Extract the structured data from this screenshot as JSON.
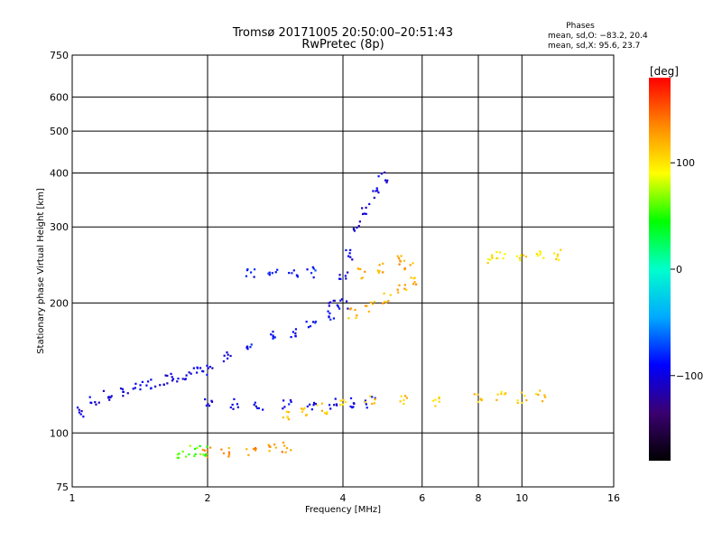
{
  "chart_data": {
    "type": "scatter",
    "title": "Tromsø 20171005 20:50:00–20:51:43",
    "subtitle": "RwPretec (8p)",
    "xlabel": "Frequency [MHz]",
    "ylabel": "Stationary phase Virtual Height [km]",
    "xscale": "log2",
    "yscale": "log",
    "xlim": [
      1,
      16
    ],
    "ylim": [
      75,
      750
    ],
    "x_ticks": [
      1,
      2,
      4,
      6,
      8,
      10,
      16
    ],
    "y_ticks": [
      75,
      100,
      200,
      300,
      400,
      500,
      600,
      750
    ],
    "grid": true,
    "stats": {
      "heading": "Phases",
      "line1": "mean, sd,O: −83.2, 20.4",
      "line2": "mean, sd,X:  95.6, 23.7"
    },
    "colorbar": {
      "unit": "[deg]",
      "range": [
        -180,
        180
      ],
      "ticks": [
        100,
        0,
        -100
      ],
      "tick_labels": [
        "100",
        "0",
        "−100"
      ],
      "colors": [
        "#000000",
        "#3a0070",
        "#0000ff",
        "#00aaff",
        "#00ffcc",
        "#00ff00",
        "#ffff00",
        "#ff8800",
        "#ff0000"
      ]
    },
    "traces": [
      {
        "polarization": "O",
        "phase_deg": -100,
        "points": [
          [
            1.05,
            112
          ],
          [
            1.12,
            118
          ],
          [
            1.2,
            122
          ],
          [
            1.3,
            125
          ],
          [
            1.4,
            128
          ],
          [
            1.5,
            130
          ],
          [
            1.6,
            133
          ],
          [
            1.7,
            135
          ],
          [
            1.8,
            137
          ],
          [
            1.9,
            138
          ],
          [
            2.0,
            140
          ]
        ]
      },
      {
        "polarization": "O",
        "phase_deg": -95,
        "points": [
          [
            2.0,
            118
          ],
          [
            2.3,
            117
          ],
          [
            2.6,
            116
          ],
          [
            3.0,
            116
          ],
          [
            3.4,
            116
          ],
          [
            3.8,
            117
          ],
          [
            4.2,
            117
          ],
          [
            4.6,
            118
          ]
        ]
      },
      {
        "polarization": "O",
        "phase_deg": -90,
        "points": [
          [
            2.2,
            150
          ],
          [
            2.5,
            160
          ],
          [
            2.8,
            168
          ],
          [
            3.1,
            172
          ],
          [
            3.4,
            178
          ],
          [
            3.8,
            186
          ],
          [
            4.0,
            200
          ]
        ]
      },
      {
        "polarization": "O",
        "phase_deg": -100,
        "points": [
          [
            3.8,
            200
          ],
          [
            4.0,
            230
          ],
          [
            4.1,
            260
          ],
          [
            4.3,
            300
          ],
          [
            4.5,
            330
          ],
          [
            4.7,
            360
          ],
          [
            4.9,
            390
          ]
        ]
      },
      {
        "polarization": "O",
        "phase_deg": -85,
        "points": [
          [
            2.5,
            235
          ],
          [
            2.8,
            238
          ],
          [
            3.1,
            236
          ],
          [
            3.4,
            236
          ]
        ]
      },
      {
        "polarization": "X",
        "phase_deg": 110,
        "points": [
          [
            3.0,
            110
          ],
          [
            3.3,
            112
          ],
          [
            3.6,
            114
          ],
          [
            4.0,
            118
          ],
          [
            4.6,
            120
          ],
          [
            5.5,
            119
          ],
          [
            6.5,
            118
          ],
          [
            8.0,
            120
          ],
          [
            9.0,
            121
          ],
          [
            10.0,
            121
          ],
          [
            11.0,
            122
          ]
        ]
      },
      {
        "polarization": "X",
        "phase_deg": 120,
        "points": [
          [
            4.2,
            190
          ],
          [
            4.6,
            196
          ],
          [
            5.0,
            205
          ],
          [
            5.4,
            215
          ],
          [
            5.7,
            225
          ]
        ]
      },
      {
        "polarization": "X",
        "phase_deg": 125,
        "points": [
          [
            4.4,
            235
          ],
          [
            4.9,
            240
          ],
          [
            5.3,
            250
          ],
          [
            5.6,
            245
          ]
        ]
      },
      {
        "polarization": "X",
        "phase_deg": 130,
        "points": [
          [
            2.0,
            90
          ],
          [
            2.2,
            90
          ],
          [
            2.5,
            91
          ],
          [
            2.8,
            92
          ],
          [
            3.0,
            93
          ]
        ]
      },
      {
        "polarization": "X",
        "phase_deg": 60,
        "points": [
          [
            1.75,
            90
          ],
          [
            1.85,
            91
          ],
          [
            1.95,
            91
          ]
        ]
      },
      {
        "polarization": "X",
        "phase_deg": 100,
        "points": [
          [
            8.5,
            255
          ],
          [
            9.0,
            255
          ],
          [
            10.0,
            258
          ],
          [
            11.0,
            260
          ],
          [
            12.0,
            258
          ]
        ]
      }
    ]
  }
}
